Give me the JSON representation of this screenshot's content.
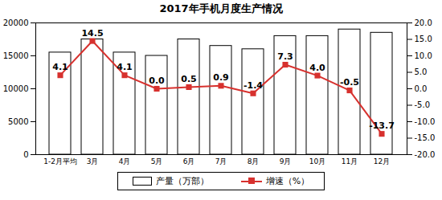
{
  "chart_data": {
    "type": "bar",
    "title": "2017年手机月度生产情况",
    "categories": [
      "1-2月平均",
      "3月",
      "4月",
      "5月",
      "6月",
      "7月",
      "8月",
      "9月",
      "10月",
      "11月",
      "12月"
    ],
    "series": [
      {
        "name": "产量（万部）",
        "type": "bar",
        "color": "#ffffff",
        "values": [
          15500,
          17500,
          15500,
          15000,
          17500,
          16500,
          16000,
          18000,
          18000,
          19000,
          18500
        ]
      },
      {
        "name": "增速（%）",
        "type": "line",
        "axis": "y2",
        "color": "#d7312e",
        "marker": "square",
        "data_labels": true,
        "values": [
          4.1,
          14.5,
          4.1,
          0.0,
          0.5,
          0.9,
          -1.4,
          7.3,
          4.0,
          -0.5,
          -13.7
        ],
        "value_labels": [
          "4.1",
          "14.5",
          "4.1",
          "0.0",
          "0.5",
          "0.9",
          "-1.4",
          "7.3",
          "4.0",
          "-0.5",
          "-13.7"
        ]
      }
    ],
    "ylim": [
      0,
      20000
    ],
    "yticks": [
      0,
      5000,
      10000,
      15000,
      20000
    ],
    "y2lim": [
      -20,
      20
    ],
    "y2ticks": [
      {
        "value": -20,
        "label": "-20.0"
      },
      {
        "value": -15,
        "label": "-15.0"
      },
      {
        "value": -10,
        "label": "-10.0"
      },
      {
        "value": -5,
        "label": "-5.0"
      },
      {
        "value": 0,
        "label": "0.0"
      },
      {
        "value": 5,
        "label": "5.0"
      },
      {
        "value": 10,
        "label": "10.0"
      },
      {
        "value": 15,
        "label": "15.0"
      },
      {
        "value": 20,
        "label": "20.0"
      }
    ],
    "legend": "bottom"
  }
}
